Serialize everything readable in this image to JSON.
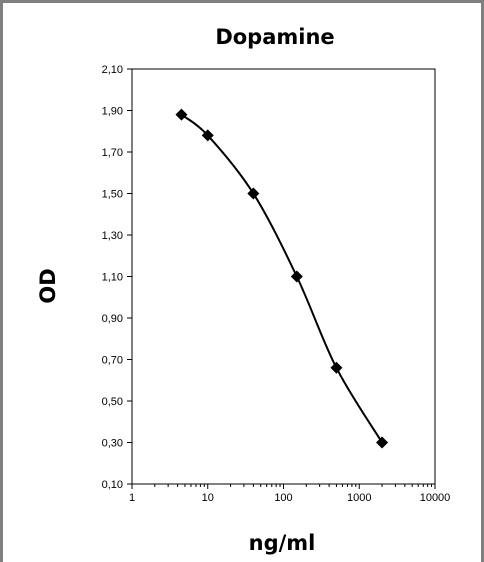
{
  "chart_data": {
    "type": "scatter",
    "title": "Dopamine",
    "xlabel": "ng/ml",
    "ylabel": "OD",
    "xscale": "log",
    "xlim": [
      1,
      10000
    ],
    "ylim": [
      0.1,
      2.1
    ],
    "xticks": [
      "1",
      "10",
      "100",
      "1000",
      "10000"
    ],
    "yticks": [
      "0,10",
      "0,30",
      "0,50",
      "0,70",
      "0,90",
      "1,10",
      "1,30",
      "1,50",
      "1,70",
      "1,90",
      "2,10"
    ],
    "marker": "diamond",
    "fit_line": "smooth curve",
    "grid": false,
    "series": [
      {
        "x": [
          4.5,
          10,
          40,
          150,
          500,
          2000
        ],
        "y": [
          1.88,
          1.78,
          1.5,
          1.1,
          0.66,
          0.3
        ]
      }
    ],
    "colors": {
      "line": "#000000",
      "marker": "#000000",
      "frame": "#808080"
    }
  }
}
